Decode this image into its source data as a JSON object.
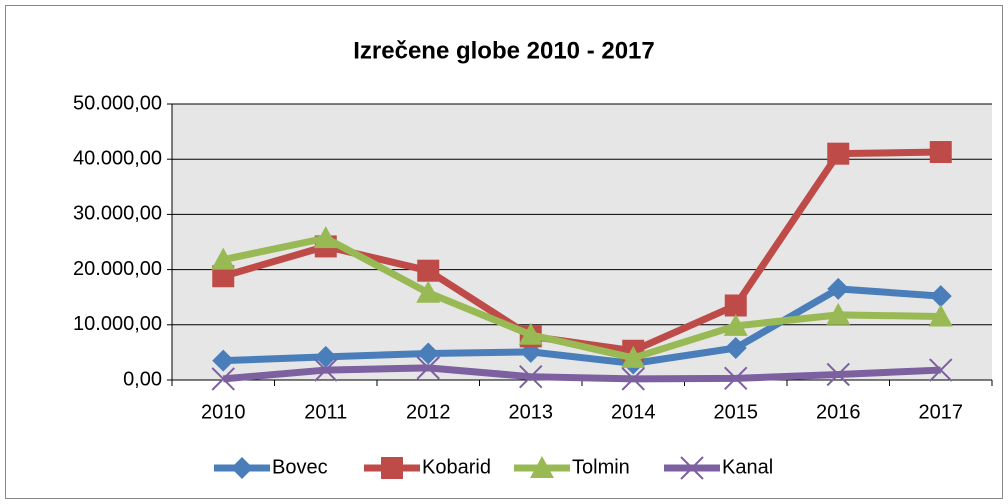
{
  "chart_data": {
    "type": "line",
    "title": "Izrečene globe 2010 - 2017",
    "categories": [
      "2010",
      "2011",
      "2012",
      "2013",
      "2014",
      "2015",
      "2016",
      "2017"
    ],
    "series": [
      {
        "name": "Bovec",
        "color": "#4a7ebb",
        "marker": "diamond",
        "values": [
          3500,
          4200,
          4800,
          5100,
          3000,
          5800,
          16500,
          15200
        ]
      },
      {
        "name": "Kobarid",
        "color": "#be4b48",
        "marker": "square",
        "values": [
          18800,
          24200,
          19800,
          7900,
          5300,
          13500,
          41000,
          41300
        ]
      },
      {
        "name": "Tolmin",
        "color": "#98b954",
        "marker": "triangle",
        "values": [
          21800,
          25700,
          15800,
          8200,
          4000,
          9800,
          11800,
          11500
        ]
      },
      {
        "name": "Kanal",
        "color": "#7d60a0",
        "marker": "x",
        "values": [
          200,
          1800,
          2200,
          600,
          200,
          300,
          1000,
          1800
        ]
      }
    ],
    "ylim": [
      0,
      50000
    ],
    "yticks": [
      {
        "value": 0,
        "label": "0,00"
      },
      {
        "value": 10000,
        "label": "10.000,00"
      },
      {
        "value": 20000,
        "label": "20.000,00"
      },
      {
        "value": 30000,
        "label": "30.000,00"
      },
      {
        "value": 40000,
        "label": "40.000,00"
      },
      {
        "value": 50000,
        "label": "50.000,00"
      }
    ],
    "grid": true,
    "legend": "bottom"
  }
}
